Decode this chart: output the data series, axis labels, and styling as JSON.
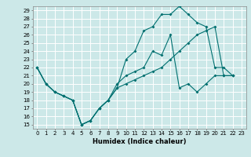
{
  "title": "",
  "xlabel": "Humidex (Indice chaleur)",
  "bg_color": "#cce8e8",
  "grid_color": "#ffffff",
  "line_color": "#007070",
  "xlim": [
    -0.5,
    23.5
  ],
  "ylim": [
    14.5,
    29.5
  ],
  "xticks": [
    0,
    1,
    2,
    3,
    4,
    5,
    6,
    7,
    8,
    9,
    10,
    11,
    12,
    13,
    14,
    15,
    16,
    17,
    18,
    19,
    20,
    21,
    22,
    23
  ],
  "yticks": [
    15,
    16,
    17,
    18,
    19,
    20,
    21,
    22,
    23,
    24,
    25,
    26,
    27,
    28,
    29
  ],
  "line1_x": [
    0,
    1,
    2,
    3,
    4,
    5,
    6,
    7,
    8,
    9,
    10,
    11,
    12,
    13,
    14,
    15,
    16,
    17,
    18,
    19,
    20,
    21,
    22
  ],
  "line1_y": [
    22,
    20,
    19,
    18.5,
    18,
    15,
    15.5,
    17,
    18,
    19.5,
    20,
    20.5,
    21,
    21.5,
    22,
    23,
    24,
    25,
    26,
    26.5,
    27,
    21,
    21
  ],
  "line2_x": [
    0,
    1,
    2,
    3,
    4,
    5,
    6,
    7,
    8,
    9,
    10,
    11,
    12,
    13,
    14,
    15,
    16,
    17,
    18,
    19,
    20,
    21,
    22
  ],
  "line2_y": [
    22,
    20,
    19,
    18.5,
    18,
    15,
    15.5,
    17,
    18,
    19.5,
    23,
    24,
    26.5,
    27,
    28.5,
    28.5,
    29.5,
    28.5,
    27.5,
    27,
    22,
    22,
    21
  ],
  "line3_x": [
    0,
    1,
    2,
    3,
    4,
    5,
    6,
    7,
    8,
    9,
    10,
    11,
    12,
    13,
    14,
    15,
    16,
    17,
    18,
    19,
    20,
    21,
    22
  ],
  "line3_y": [
    22,
    20,
    19,
    18.5,
    18,
    15,
    15.5,
    17,
    18,
    20,
    21,
    21.5,
    22,
    24,
    23.5,
    26,
    19.5,
    20,
    19,
    20,
    21,
    21,
    21
  ],
  "xlabel_fontsize": 6,
  "tick_fontsize": 5,
  "marker_size": 2,
  "linewidth": 0.8
}
